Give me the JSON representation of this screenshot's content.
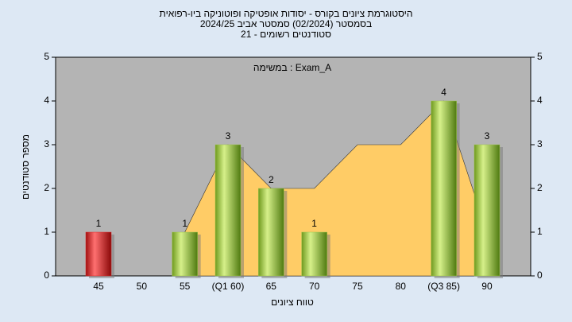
{
  "chart_data": {
    "type": "bar",
    "title": [
      "היסטוגרמת ציונים בקורס - יסודות אופטיקה ופוטוניקה ביו-רפואית",
      "בסמסטר  (02/2024)  סמסטר אביב 2024/25",
      "סטודנטים רשומים - 21"
    ],
    "annotation": "במשימה : Exam_A",
    "x_label": "טווח ציונים",
    "y_label": "מספר סטודנטים",
    "categories": [
      "45",
      "50",
      "55",
      "(Q1 60)",
      "65",
      "70",
      "75",
      "80",
      "(Q3 85)",
      "90"
    ],
    "series": [
      {
        "type": "area",
        "color": "#ffcc66",
        "values": [
          null,
          null,
          1,
          3,
          2,
          2,
          3,
          3,
          4,
          1
        ]
      },
      {
        "type": "bar",
        "colors": [
          "#d92a2a",
          "#9dc44a",
          "#9dc44a",
          "#9dc44a",
          "#9dc44a",
          "#9dc44a",
          "#9dc44a",
          "#9dc44a",
          "#9dc44a",
          "#9dc44a"
        ],
        "values": [
          1,
          0,
          1,
          3,
          2,
          1,
          0,
          0,
          4,
          3
        ]
      }
    ],
    "ylim": [
      0,
      5
    ],
    "yticks": [
      0,
      1,
      2,
      3,
      4,
      5
    ],
    "y2lim": [
      0,
      5
    ],
    "y2ticks": [
      0,
      1,
      2,
      3,
      4,
      5
    ]
  }
}
